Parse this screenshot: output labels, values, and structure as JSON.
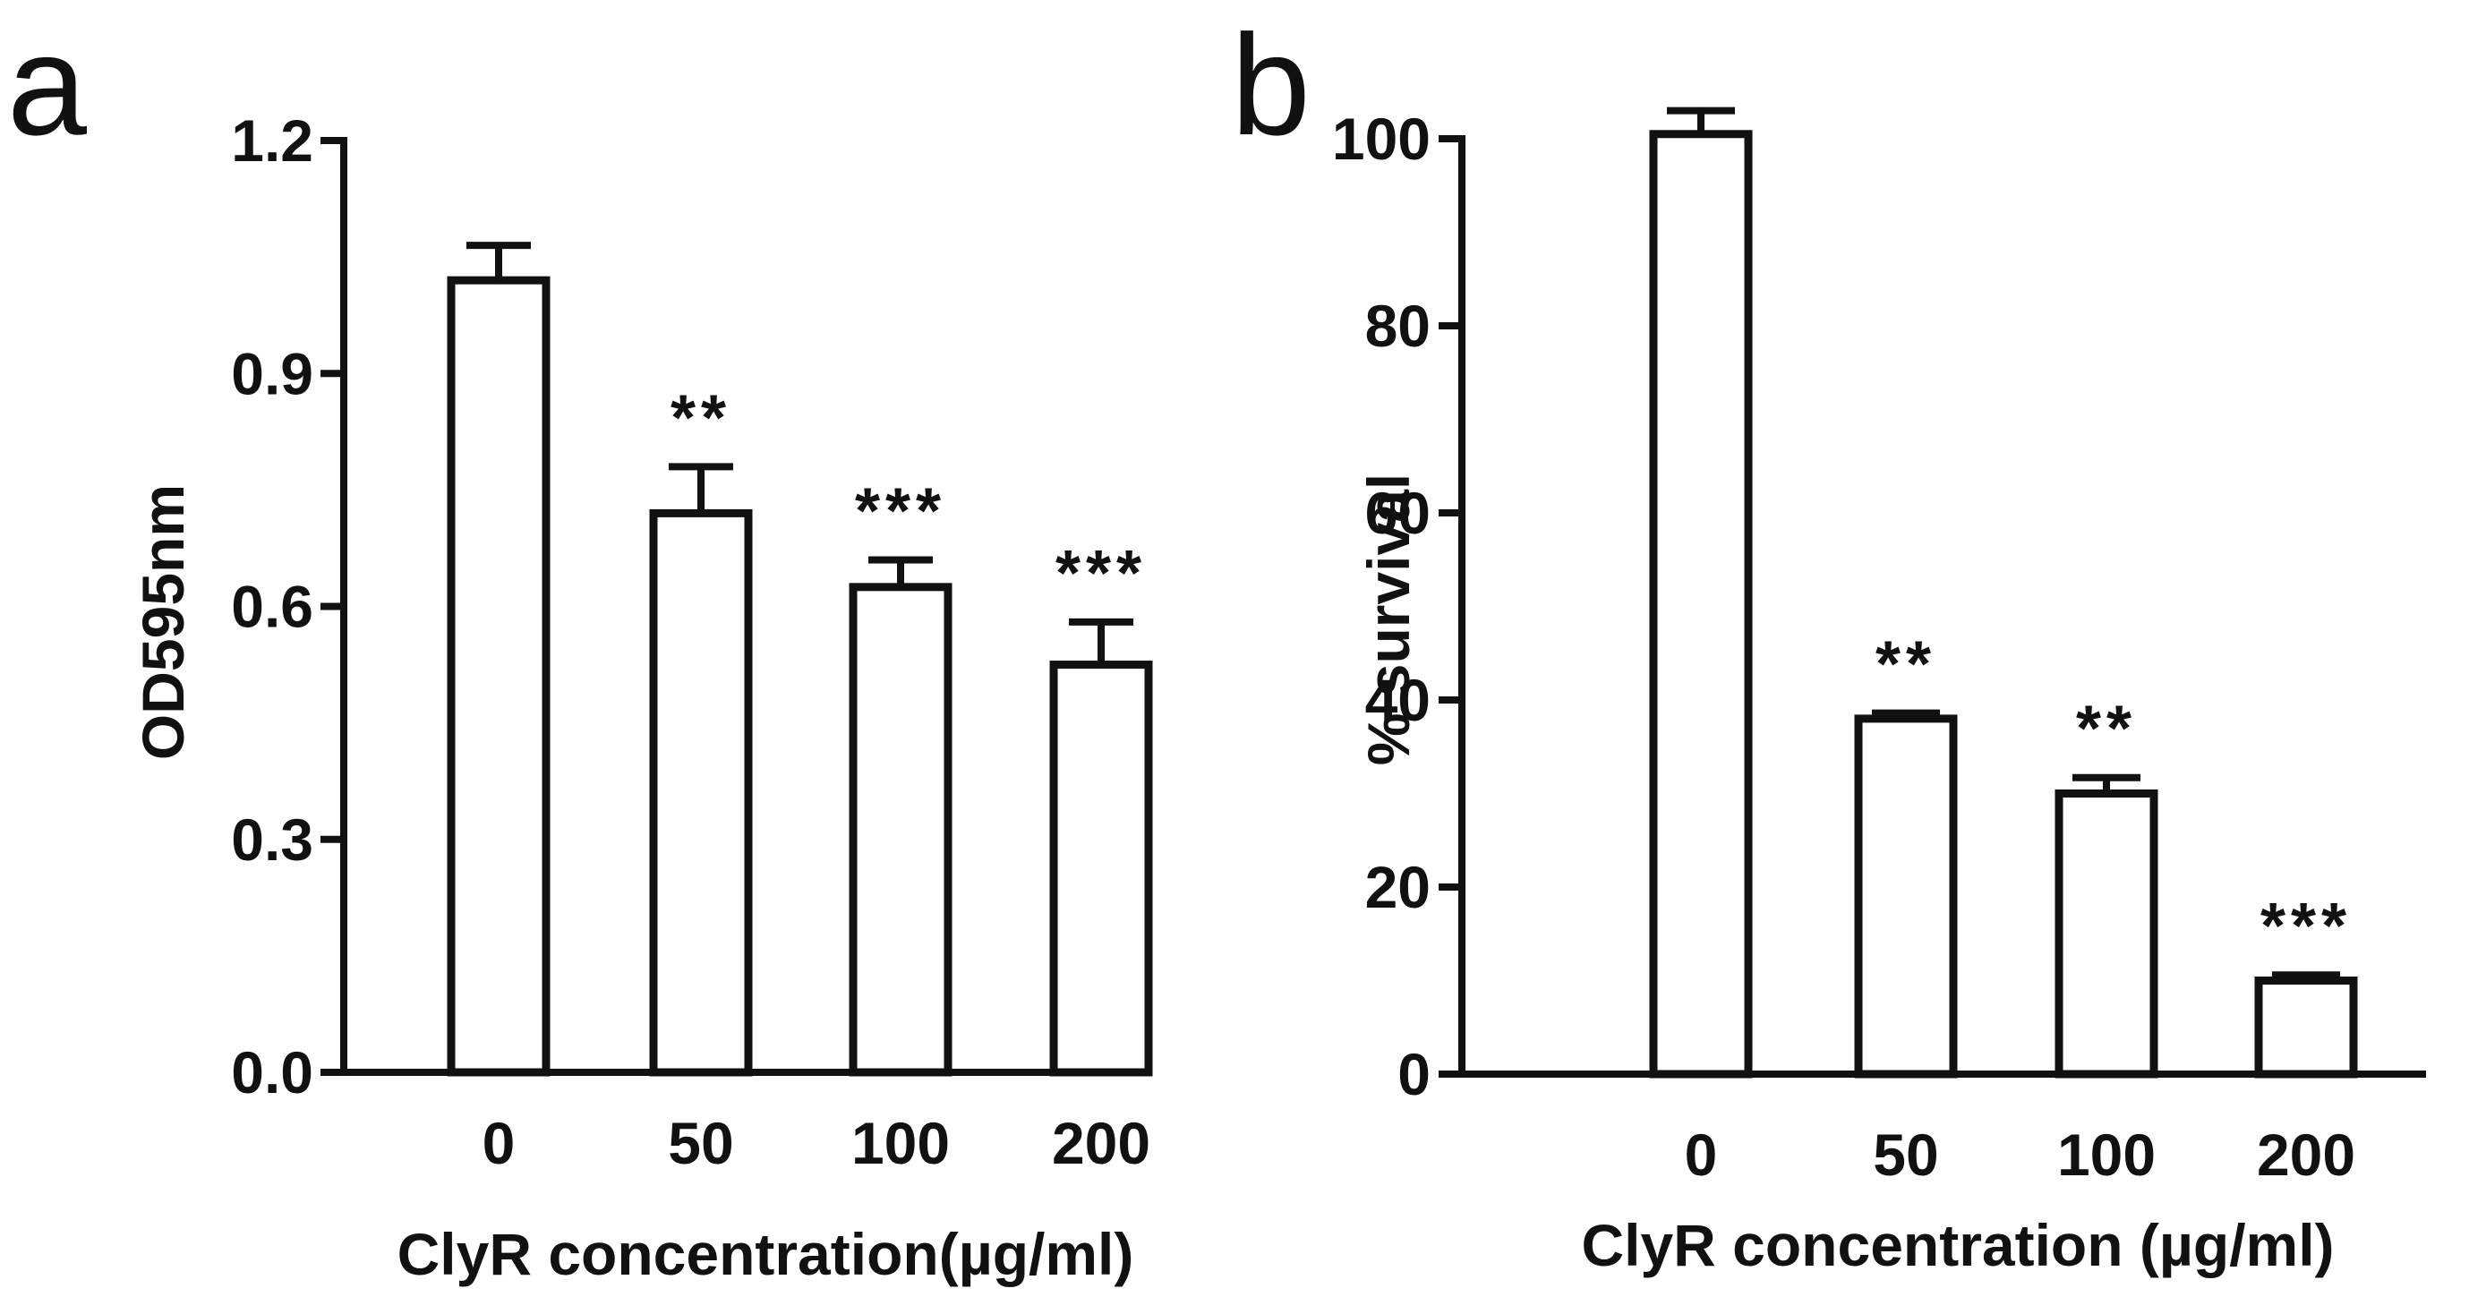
{
  "chart_data": [
    {
      "type": "bar",
      "panel_label": "a",
      "categories": [
        "0",
        "50",
        "100",
        "200"
      ],
      "values": [
        1.02,
        0.72,
        0.625,
        0.525
      ],
      "errors": [
        0.045,
        0.06,
        0.035,
        0.055
      ],
      "significance": [
        "",
        "**",
        "***",
        "***"
      ],
      "xlabel": "ClyR concentration(µg/ml)",
      "ylabel": "OD595nm",
      "ylim": [
        0,
        1.2
      ],
      "yticks": [
        "0.0",
        "0.3",
        "0.6",
        "0.9",
        "1.2"
      ],
      "ytick_values": [
        0,
        0.3,
        0.6,
        0.9,
        1.2
      ]
    },
    {
      "type": "bar",
      "panel_label": "b",
      "categories": [
        "0",
        "50",
        "100",
        "200"
      ],
      "values": [
        100.5,
        38,
        30,
        10
      ],
      "errors": [
        2.5,
        0.6,
        1.7,
        0.6
      ],
      "significance": [
        "",
        "**",
        "**",
        "***"
      ],
      "xlabel": "ClyR concentration (µg/ml)",
      "ylabel": "% survival",
      "ylim": [
        0,
        105
      ],
      "yticks": [
        "0",
        "20",
        "40",
        "60",
        "80",
        "100"
      ],
      "ytick_values": [
        0,
        20,
        40,
        60,
        80,
        100
      ]
    }
  ]
}
